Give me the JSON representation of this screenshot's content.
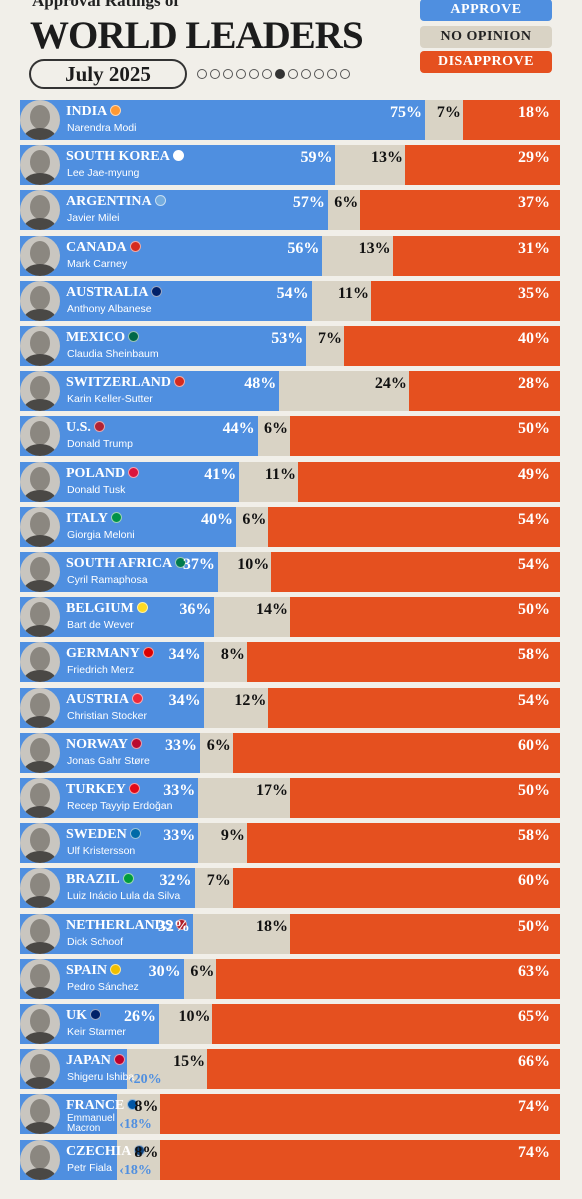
{
  "header": {
    "subtitle": "Approval Ratings of",
    "title": "WORLD LEADERS",
    "date": "July 2025",
    "pager_total": 12,
    "pager_active": 7
  },
  "legend": {
    "approve": "APPROVE",
    "no_opinion": "NO OPINION",
    "disapprove": "DISAPPROVE"
  },
  "colors": {
    "approve": "#4f8fe0",
    "no_opinion": "#d9d3c5",
    "disapprove": "#e5501f"
  },
  "chart_data": {
    "type": "bar",
    "orientation": "horizontal-stacked",
    "title": "WORLD LEADERS",
    "subtitle": "Approval Ratings of",
    "date": "July 2025",
    "series_names": [
      "APPROVE",
      "NO OPINION",
      "DISAPPROVE"
    ],
    "rows": [
      {
        "country": "INDIA",
        "leader": "Narendra Modi",
        "approve": 75,
        "no_opinion": 7,
        "disapprove": 18,
        "flag_color": "#ff9933"
      },
      {
        "country": "SOUTH KOREA",
        "leader": "Lee Jae-myung",
        "approve": 59,
        "no_opinion": 13,
        "disapprove": 29,
        "flag_color": "#ffffff"
      },
      {
        "country": "ARGENTINA",
        "leader": "Javier Milei",
        "approve": 57,
        "no_opinion": 6,
        "disapprove": 37,
        "flag_color": "#74acdf"
      },
      {
        "country": "CANADA",
        "leader": "Mark Carney",
        "approve": 56,
        "no_opinion": 13,
        "disapprove": 31,
        "flag_color": "#d52b1e"
      },
      {
        "country": "AUSTRALIA",
        "leader": "Anthony Albanese",
        "approve": 54,
        "no_opinion": 11,
        "disapprove": 35,
        "flag_color": "#012169"
      },
      {
        "country": "MEXICO",
        "leader": "Claudia Sheinbaum",
        "approve": 53,
        "no_opinion": 7,
        "disapprove": 40,
        "flag_color": "#006847"
      },
      {
        "country": "SWITZERLAND",
        "leader": "Karin Keller-Sutter",
        "approve": 48,
        "no_opinion": 24,
        "disapprove": 28,
        "flag_color": "#d52b1e"
      },
      {
        "country": "U.S.",
        "leader": "Donald Trump",
        "approve": 44,
        "no_opinion": 6,
        "disapprove": 50,
        "flag_color": "#b22234"
      },
      {
        "country": "POLAND",
        "leader": "Donald Tusk",
        "approve": 41,
        "no_opinion": 11,
        "disapprove": 49,
        "flag_color": "#dc143c"
      },
      {
        "country": "ITALY",
        "leader": "Giorgia Meloni",
        "approve": 40,
        "no_opinion": 6,
        "disapprove": 54,
        "flag_color": "#009246"
      },
      {
        "country": "SOUTH AFRICA",
        "leader": "Cyril Ramaphosa",
        "approve": 37,
        "no_opinion": 10,
        "disapprove": 54,
        "flag_color": "#007a4d"
      },
      {
        "country": "BELGIUM",
        "leader": "Bart de Wever",
        "approve": 36,
        "no_opinion": 14,
        "disapprove": 50,
        "flag_color": "#fdda24"
      },
      {
        "country": "GERMANY",
        "leader": "Friedrich Merz",
        "approve": 34,
        "no_opinion": 8,
        "disapprove": 58,
        "flag_color": "#dd0000"
      },
      {
        "country": "AUSTRIA",
        "leader": "Christian Stocker",
        "approve": 34,
        "no_opinion": 12,
        "disapprove": 54,
        "flag_color": "#ed2939"
      },
      {
        "country": "NORWAY",
        "leader": "Jonas Gahr Støre",
        "approve": 33,
        "no_opinion": 6,
        "disapprove": 60,
        "flag_color": "#ba0c2f"
      },
      {
        "country": "TURKEY",
        "leader": "Recep Tayyip Erdoğan",
        "approve": 33,
        "no_opinion": 17,
        "disapprove": 50,
        "flag_color": "#e30a17"
      },
      {
        "country": "SWEDEN",
        "leader": "Ulf Kristersson",
        "approve": 33,
        "no_opinion": 9,
        "disapprove": 58,
        "flag_color": "#006aa7"
      },
      {
        "country": "BRAZIL",
        "leader": "Luiz Inácio Lula da Silva",
        "approve": 32,
        "no_opinion": 7,
        "disapprove": 60,
        "flag_color": "#009c3b"
      },
      {
        "country": "NETHERLANDS",
        "leader": "Dick Schoof",
        "approve": 32,
        "no_opinion": 18,
        "disapprove": 50,
        "flag_color": "#ae1c28"
      },
      {
        "country": "SPAIN",
        "leader": "Pedro Sánchez",
        "approve": 30,
        "no_opinion": 6,
        "disapprove": 63,
        "flag_color": "#f1bf00"
      },
      {
        "country": "UK",
        "leader": "Keir Starmer",
        "approve": 26,
        "no_opinion": 10,
        "disapprove": 65,
        "flag_color": "#012169"
      },
      {
        "country": "JAPAN",
        "leader": "Shigeru Ishiba",
        "approve": 20,
        "no_opinion": 15,
        "disapprove": 66,
        "flag_color": "#bc002d"
      },
      {
        "country": "FRANCE",
        "leader": "Emmanuel Macron",
        "approve": 18,
        "no_opinion": 8,
        "disapprove": 74,
        "flag_color": "#0055a4"
      },
      {
        "country": "CZECHIA",
        "leader": "Petr Fiala",
        "approve": 18,
        "no_opinion": 8,
        "disapprove": 74,
        "flag_color": "#11457e"
      }
    ]
  }
}
